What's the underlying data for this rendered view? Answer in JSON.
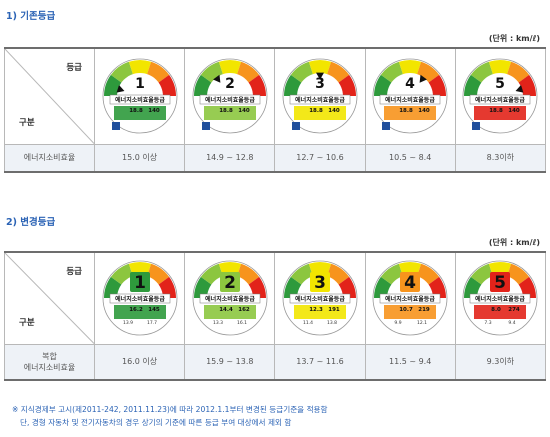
{
  "section1": {
    "title": "1) 기존등급",
    "unit": "(단위 : km/ℓ)",
    "header_grade": "등급",
    "header_division": "구분",
    "row_label": "에너지소비효율",
    "labels": [
      {
        "grade": "1",
        "title": "에너지소비효율등급",
        "efficiency": "18.8",
        "co2": "140"
      },
      {
        "grade": "2",
        "title": "에너지소비효율등급",
        "efficiency": "18.8",
        "co2": "140"
      },
      {
        "grade": "3",
        "title": "에너지소비효율등급",
        "efficiency": "18.8",
        "co2": "140"
      },
      {
        "grade": "4",
        "title": "에너지소비효율등급",
        "efficiency": "18.8",
        "co2": "140"
      },
      {
        "grade": "5",
        "title": "에너지소비효율등급",
        "efficiency": "18.8",
        "co2": "140"
      }
    ],
    "ranges": [
      "15.0 이상",
      "14.9 ~ 12.8",
      "12.7 ~ 10.6",
      "10.5 ~ 8.4",
      "8.3이하"
    ]
  },
  "section2": {
    "title": "2) 변경등급",
    "unit": "(단위 : km/ℓ)",
    "header_grade": "등급",
    "header_division": "구분",
    "row_label_line1": "복합",
    "row_label_line2": "에너지소비효율",
    "labels": [
      {
        "grade": "1",
        "title": "에너지소비효율등급",
        "efficiency": "16.2",
        "co2": "145",
        "city": "13.9",
        "highway": "17.7"
      },
      {
        "grade": "2",
        "title": "에너지소비효율등급",
        "efficiency": "14.4",
        "co2": "162",
        "city": "13.3",
        "highway": "16.1"
      },
      {
        "grade": "3",
        "title": "에너지소비효율등급",
        "efficiency": "12.3",
        "co2": "191",
        "city": "11.4",
        "highway": "13.8"
      },
      {
        "grade": "4",
        "title": "에너지소비효율등급",
        "efficiency": "10.7",
        "co2": "219",
        "city": "9.9",
        "highway": "12.1"
      },
      {
        "grade": "5",
        "title": "에너지소비효율등급",
        "efficiency": "8.0",
        "co2": "274",
        "city": "7.3",
        "highway": "9.4"
      }
    ],
    "ranges": [
      "16.0 이상",
      "15.9 ~ 13.8",
      "13.7 ~ 11.6",
      "11.5 ~ 9.4",
      "9.3이하"
    ]
  },
  "notes": {
    "line1": "※ 지식경제부 고시(제2011-242, 2011.11.23)에 따라 2012.1.1부터 변경된 등급기준을 적용함",
    "line2": "단, 경형 자동차 및 전기자동차의 경우 상기의 기준에 따른 등급 부여 대상에서 제외 함"
  },
  "colors": {
    "grade1": "#2e9a3c",
    "grade2": "#8cc63f",
    "grade3": "#f2e500",
    "grade4": "#f7941d",
    "grade5": "#e2231a",
    "accent": "#2b63b5",
    "label_blue": "#1f4e9c"
  }
}
